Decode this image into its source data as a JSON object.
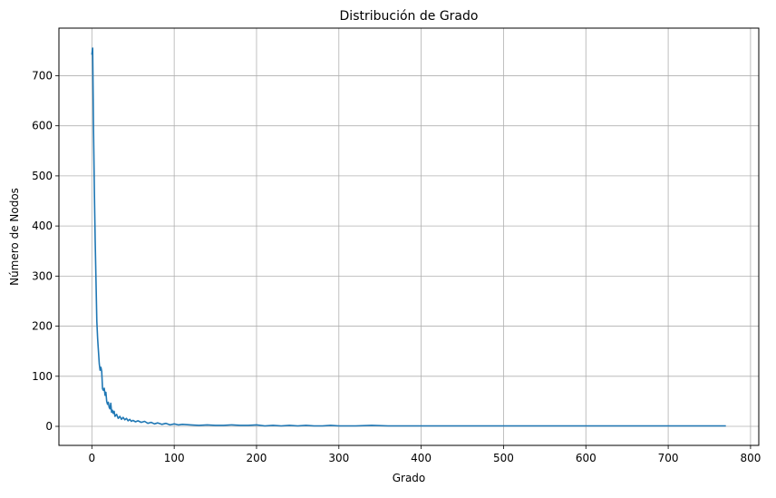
{
  "chart_data": {
    "type": "line",
    "title": "Distribución de Grado",
    "xlabel": "Grado",
    "ylabel": "Número de Nodos",
    "xlim": [
      -40,
      810
    ],
    "ylim": [
      -38,
      795
    ],
    "xticks": [
      0,
      100,
      200,
      300,
      400,
      500,
      600,
      700,
      800
    ],
    "yticks": [
      0,
      100,
      200,
      300,
      400,
      500,
      600,
      700
    ],
    "grid": true,
    "line_color": "#1f77b4",
    "series": [
      {
        "x": [
          0,
          1,
          2,
          3,
          4,
          5,
          6,
          7,
          8,
          9,
          10,
          11,
          12,
          13,
          14,
          15,
          16,
          17,
          18,
          19,
          20,
          21,
          22,
          23,
          24,
          25,
          26,
          27,
          28,
          30,
          32,
          34,
          36,
          38,
          40,
          42,
          44,
          46,
          48,
          50,
          53,
          56,
          60,
          64,
          68,
          72,
          76,
          80,
          85,
          90,
          95,
          100,
          105,
          110,
          120,
          130,
          140,
          150,
          160,
          170,
          180,
          190,
          200,
          210,
          220,
          230,
          240,
          250,
          260,
          270,
          280,
          290,
          300,
          320,
          340,
          360,
          380,
          400,
          450,
          500,
          550,
          600,
          650,
          700,
          730,
          770
        ],
        "values": [
          742,
          755,
          600,
          470,
          370,
          290,
          210,
          175,
          150,
          125,
          112,
          118,
          110,
          75,
          72,
          76,
          62,
          68,
          50,
          44,
          48,
          38,
          35,
          46,
          28,
          32,
          26,
          30,
          20,
          24,
          16,
          20,
          14,
          18,
          13,
          16,
          11,
          14,
          10,
          12,
          9,
          11,
          8,
          10,
          6,
          8,
          5,
          7,
          4,
          6,
          3,
          5,
          3,
          4,
          3,
          2,
          3,
          2,
          2,
          3,
          2,
          2,
          3,
          1,
          2,
          1,
          2,
          1,
          2,
          1,
          1,
          2,
          1,
          1,
          2,
          1,
          1,
          1,
          1,
          1,
          1,
          1,
          1,
          1,
          1,
          1
        ]
      }
    ]
  }
}
